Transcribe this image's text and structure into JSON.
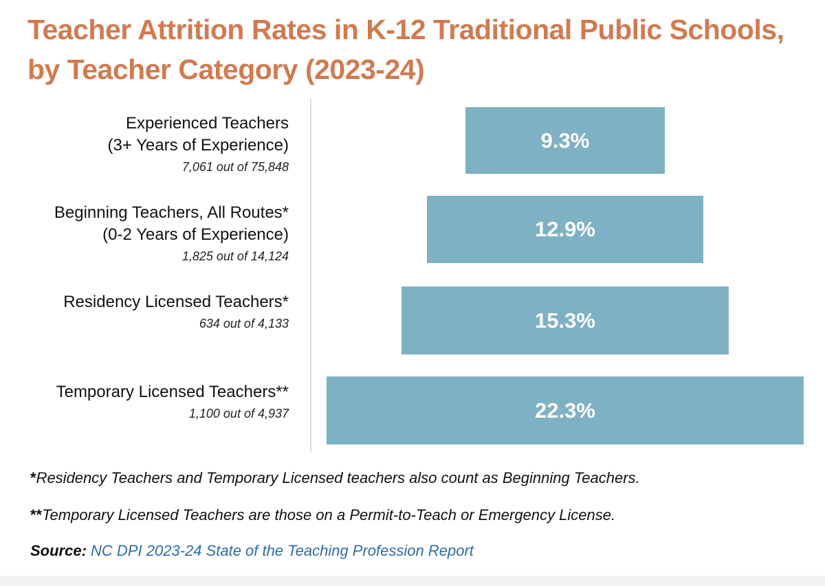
{
  "title": "Teacher Attrition Rates in K-12 Traditional Public Schools, by Teacher Category (2023-24)",
  "colors": {
    "title": "#d17a50",
    "bar": "#7fb1c4",
    "bar_label": "#ffffff",
    "link": "#2f6aa8"
  },
  "chart_data": {
    "type": "bar",
    "orientation": "horizontal-centered",
    "title": "Teacher Attrition Rates in K-12 Traditional Public Schools, by Teacher Category (2023-24)",
    "categories": [
      {
        "name": "Experienced Teachers",
        "sub": "(3+ Years of Experience)",
        "count": "7,061 out of 75,848",
        "value": 9.3,
        "label": "9.3%"
      },
      {
        "name": "Beginning Teachers, All Routes*",
        "sub": "(0-2 Years of Experience)",
        "count": "1,825 out of 14,124",
        "value": 12.9,
        "label": "12.9%"
      },
      {
        "name": "Residency Licensed Teachers*",
        "sub": "",
        "count": "634 out of 4,133",
        "value": 15.3,
        "label": "15.3%"
      },
      {
        "name": "Temporary Licensed Teachers**",
        "sub": "",
        "count": "1,100 out of 4,937",
        "value": 22.3,
        "label": "22.3%"
      }
    ],
    "unit": "%"
  },
  "notes": [
    {
      "mark": "*",
      "text": "Residency Teachers and Temporary Licensed teachers also count as Beginning Teachers."
    },
    {
      "mark": "**",
      "text": "Temporary Licensed Teachers are those on a Permit-to-Teach or Emergency License."
    }
  ],
  "source": {
    "label": "Source:",
    "text": "NC DPI 2023-24 State of the Teaching Profession Report"
  }
}
